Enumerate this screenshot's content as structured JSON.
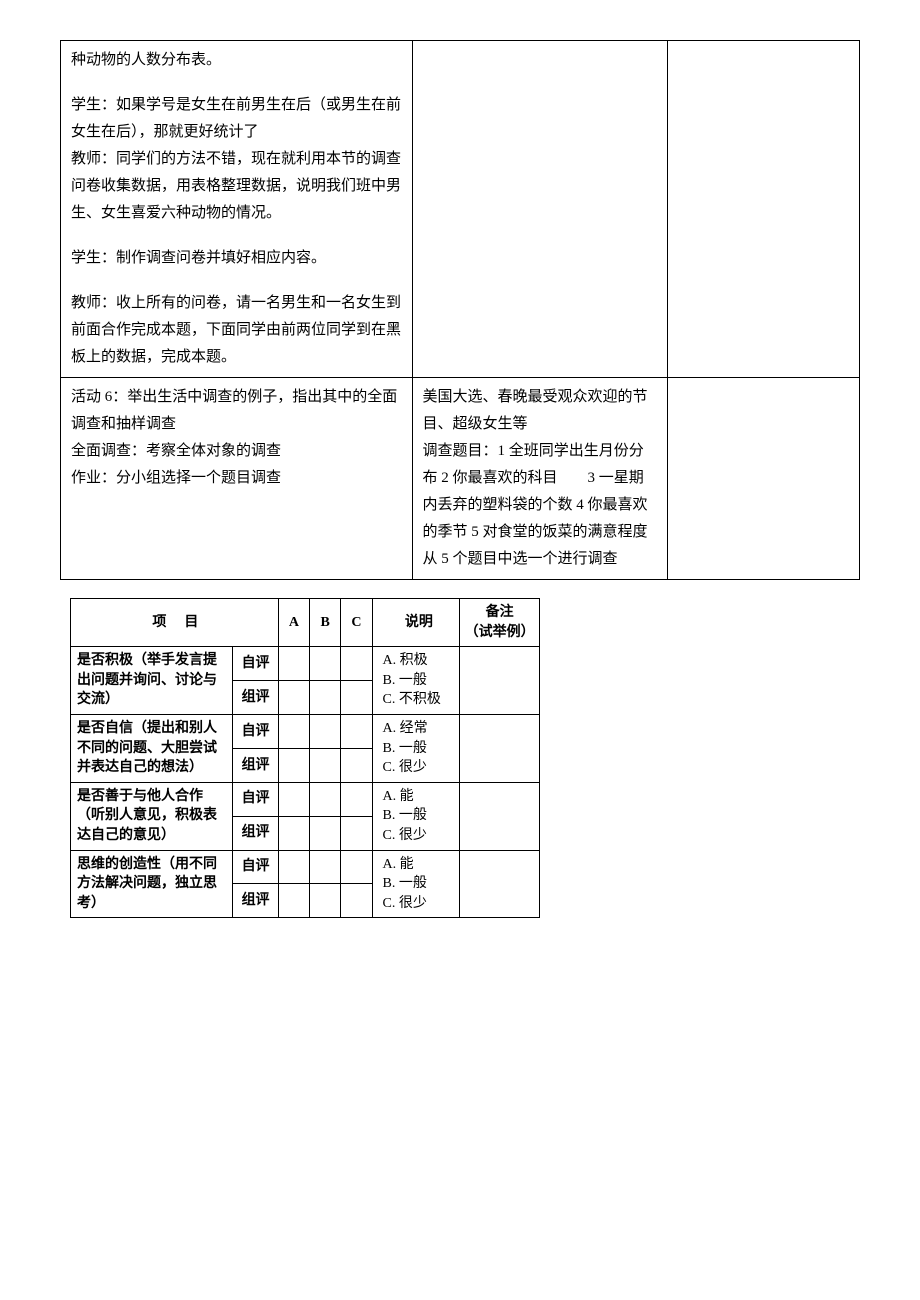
{
  "mainTable": {
    "row1": {
      "c1_p1": "种动物的人数分布表。",
      "c1_p2": "学生：如果学号是女生在前男生在后（或男生在前女生在后），那就更好统计了",
      "c1_p3": "教师：同学们的方法不错，现在就利用本节的调查问卷收集数据，用表格整理数据，说明我们班中男生、女生喜爱六种动物的情况。",
      "c1_p4": "学生：制作调查问卷并填好相应内容。",
      "c1_p5": "教师：收上所有的问卷，请一名男生和一名女生到前面合作完成本题，下面同学由前两位同学到在黑板上的数据，完成本题。",
      "c2": "",
      "c3": ""
    },
    "row2": {
      "c1_l1": "活动 6：举出生活中调查的例子，指出其中的全面调查和抽样调查",
      "c1_l2": "全面调查：考察全体对象的调查",
      "c1_l3": "作业：分小组选择一个题目调查",
      "c2_l1": "美国大选、春晚最受观众欢迎的节目、超级女生等",
      "c2_l2": "调查题目：1 全班同学出生月份分布  2 你最喜欢的科目　　3 一星期内丢弃的塑料袋的个数 4 你最喜欢的季节 5 对食堂的饭菜的满意程度",
      "c2_l3": "从 5 个题目中选一个进行调查",
      "c3": ""
    }
  },
  "evalTable": {
    "header": {
      "item": "项目",
      "a": "A",
      "b": "B",
      "c": "C",
      "desc": "说明",
      "note1": "备注",
      "note2": "（试举例）"
    },
    "labels": {
      "self": "自评",
      "group": "组评"
    },
    "rows": [
      {
        "item": "是否积极（举手发言提出问题并询问、讨论与交流）",
        "descA": "A. 积极",
        "descB": "B. 一般",
        "descC": "C. 不积极"
      },
      {
        "item": "是否自信（提出和别人不同的问题、大胆尝试并表达自己的想法）",
        "descA": "A. 经常",
        "descB": "B. 一般",
        "descC": "C. 很少"
      },
      {
        "item": "是否善于与他人合作（听别人意见，积极表达自己的意见）",
        "descA": "A. 能",
        "descB": "B. 一般",
        "descC": "C. 很少"
      },
      {
        "item": "思维的创造性（用不同方法解决问题，独立思考）",
        "descA": "A. 能",
        "descB": "B. 一般",
        "descC": "C. 很少"
      }
    ]
  }
}
